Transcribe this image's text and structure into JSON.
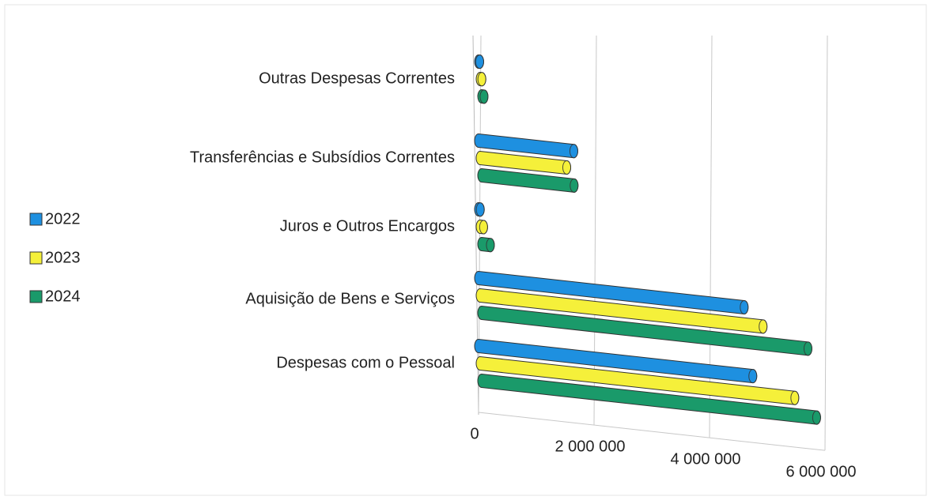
{
  "chart_data": {
    "type": "bar3d_horizontal",
    "categories": [
      "Outras Despesas Correntes",
      "Transferências e Subsídios Correntes",
      "Juros e Outros Encargos",
      "Aquisição de Bens e Serviços",
      "Despesas com o Pessoal"
    ],
    "series": [
      {
        "name": "2022",
        "color": "#1e90e0",
        "values": [
          20000,
          1650000,
          30000,
          4600000,
          4750000
        ]
      },
      {
        "name": "2023",
        "color": "#f5f03a",
        "values": [
          30000,
          1500000,
          60000,
          4900000,
          5450000
        ]
      },
      {
        "name": "2024",
        "color": "#1a9a6a",
        "values": [
          40000,
          1600000,
          150000,
          5650000,
          5800000
        ]
      }
    ],
    "xlim": [
      0,
      6000000
    ],
    "xticks": [
      0,
      {
        "value": 2000000,
        "label": "2 000 000"
      },
      {
        "value": 4000000,
        "label": "4 000 000"
      },
      {
        "value": 6000000,
        "label": "6 000 000"
      }
    ],
    "grid": true,
    "legend": "left"
  }
}
